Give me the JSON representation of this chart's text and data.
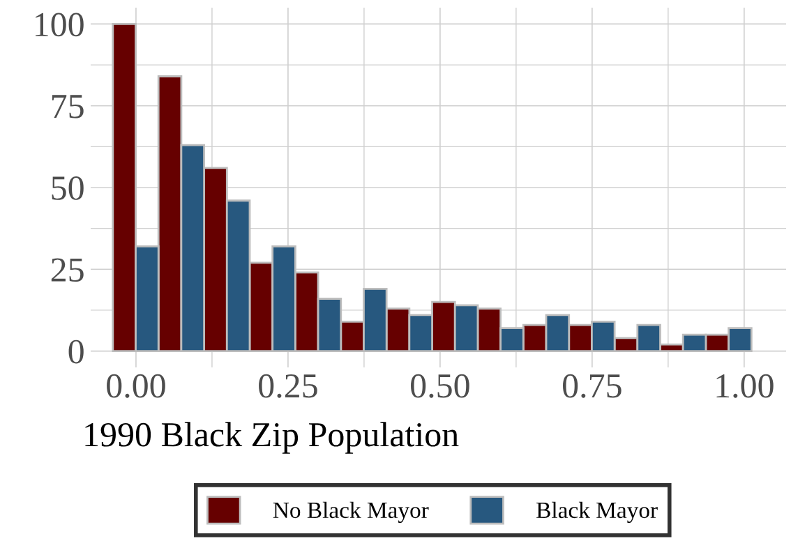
{
  "chart_data": {
    "type": "histogram",
    "xlabel": "1990 Black Zip Population",
    "bins": [
      -0.038,
      -0.0005,
      0.037,
      0.0745,
      0.112,
      0.1495,
      0.187,
      0.2245,
      0.262,
      0.2995,
      0.337,
      0.3745,
      0.412,
      0.4495,
      0.487,
      0.5245,
      0.562,
      0.5995,
      0.637,
      0.6745,
      0.712,
      0.7495,
      0.787,
      0.8245,
      0.862,
      0.8995,
      0.937,
      0.9745,
      1.012
    ],
    "series": [
      {
        "name": "No Black Mayor",
        "color": "#660000",
        "values": [
          100,
          null,
          84,
          null,
          56,
          null,
          27,
          null,
          24,
          null,
          9,
          null,
          13,
          null,
          15,
          null,
          13,
          null,
          8,
          null,
          8,
          null,
          4,
          null,
          2,
          null,
          5,
          null
        ]
      },
      {
        "name": "Black Mayor",
        "color": "#27587f",
        "values": [
          null,
          32,
          null,
          63,
          null,
          46,
          null,
          32,
          null,
          16,
          null,
          19,
          null,
          11,
          null,
          14,
          null,
          7,
          null,
          11,
          null,
          9,
          null,
          8,
          null,
          5,
          null,
          7
        ]
      }
    ],
    "xlim": [
      -0.0745,
      1.069
    ],
    "xticks": [
      {
        "value": 0,
        "label": "0.00"
      },
      {
        "value": 0.25,
        "label": "0.25"
      },
      {
        "value": 0.5,
        "label": "0.50"
      },
      {
        "value": 0.75,
        "label": "0.75"
      },
      {
        "value": 1,
        "label": "1.00"
      }
    ],
    "ylim": [
      -5,
      105
    ],
    "yticks": [
      0,
      25,
      50,
      75,
      100
    ],
    "grid": true,
    "legend": "bottom"
  }
}
